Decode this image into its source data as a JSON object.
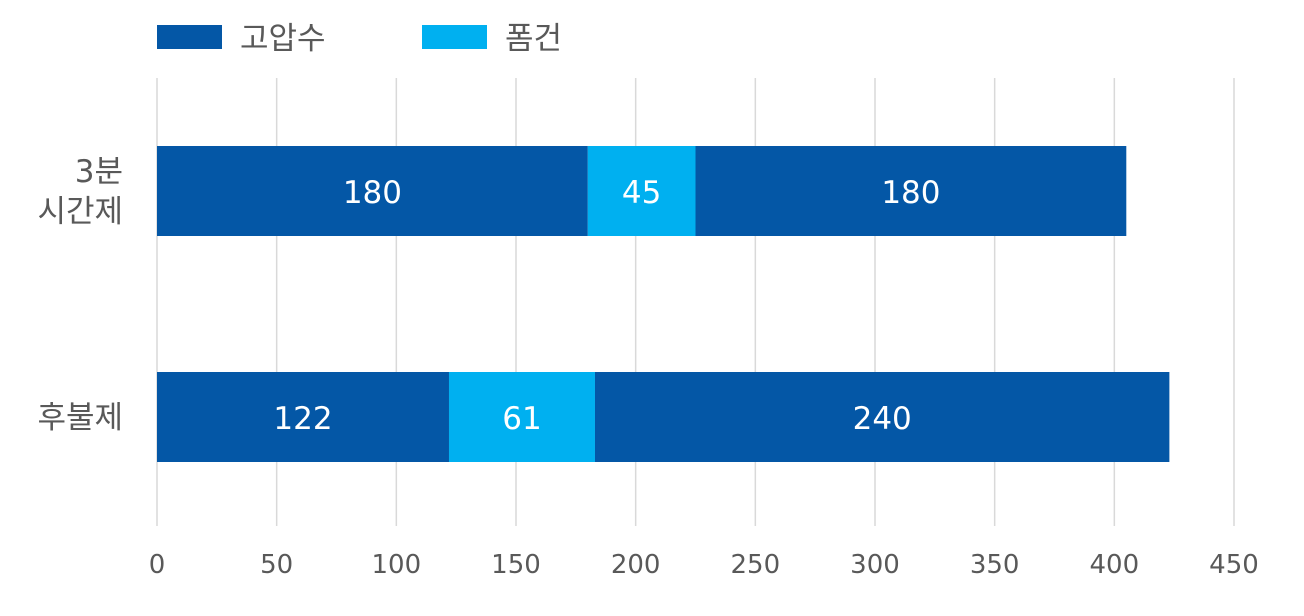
{
  "chart_data": {
    "type": "bar",
    "orientation": "horizontal",
    "stacked": true,
    "categories": [
      "3분\n시간제",
      "후불제"
    ],
    "legend": {
      "placement": "top-left",
      "items": [
        {
          "name": "고압수",
          "color": "#0457A6"
        },
        {
          "name": "폼건",
          "color": "#00B0F0"
        }
      ]
    },
    "segments": [
      [
        {
          "series": "고압수",
          "value": 180
        },
        {
          "series": "폼건",
          "value": 45
        },
        {
          "series": "고압수",
          "value": 180
        }
      ],
      [
        {
          "series": "고압수",
          "value": 122
        },
        {
          "series": "폼건",
          "value": 61
        },
        {
          "series": "고압수",
          "value": 240
        }
      ]
    ],
    "xlim": [
      0,
      450
    ],
    "xticks": [
      0,
      50,
      100,
      150,
      200,
      250,
      300,
      350,
      400,
      450
    ],
    "grid": true,
    "data_labels": true
  }
}
